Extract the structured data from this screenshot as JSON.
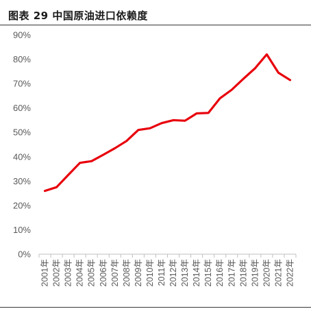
{
  "title": "图表 29 中国原油进口依赖度",
  "chart_data": {
    "type": "line",
    "title": "图表 29 中国原油进口依赖度",
    "xlabel": "",
    "ylabel": "",
    "categories": [
      "2001年",
      "2002年",
      "2003年",
      "2004年",
      "2005年",
      "2006年",
      "2007年",
      "2008年",
      "2009年",
      "2010年",
      "2011年",
      "2012年",
      "2013年",
      "2014年",
      "2015年",
      "2016年",
      "2017年",
      "2018年",
      "2019年",
      "2020年",
      "2021年",
      "2022年"
    ],
    "yticks": [
      "0%",
      "10%",
      "20%",
      "30%",
      "40%",
      "50%",
      "60%",
      "70%",
      "80%",
      "90%"
    ],
    "ylim": [
      0,
      90
    ],
    "grid": false,
    "legend": "none",
    "series": [
      {
        "color": "#e8000b",
        "values": [
          26,
          27.5,
          32.5,
          37.5,
          38.2,
          40.8,
          43.5,
          46.5,
          51,
          51.7,
          53.8,
          55,
          54.8,
          57.8,
          58,
          64,
          67.5,
          72,
          76.3,
          82,
          74.5,
          71.5
        ]
      }
    ]
  }
}
